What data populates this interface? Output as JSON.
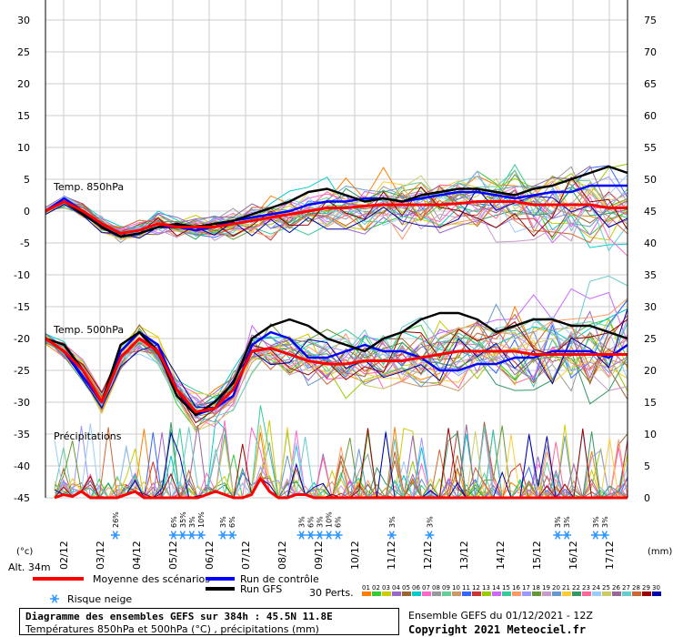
{
  "chart_data": {
    "type": "line",
    "title": "Diagramme des ensembles GEFS sur 384h : 45.5N 11.8E",
    "subtitle": "Températures 850hPa et 500hPa (°C) , précipitations (mm)",
    "run_label": "Ensemble GEFS du 01/12/2021 - 12Z",
    "copyright": "Copyright 2021 Meteociel.fr",
    "altitude": "Alt. 34m",
    "left_unit": "(°c)",
    "right_unit": "(mm)",
    "left_ticks": [
      "30",
      "25",
      "20",
      "15",
      "10",
      "5",
      "0",
      "-5",
      "-10",
      "-15",
      "-20",
      "-25",
      "-30",
      "-35",
      "-40",
      "-45"
    ],
    "right_ticks": [
      "75",
      "70",
      "65",
      "60",
      "55",
      "50",
      "45",
      "40",
      "35",
      "30",
      "25",
      "20",
      "15",
      "10",
      "5",
      "0"
    ],
    "x_labels": [
      "02/12",
      "03/12",
      "04/12",
      "05/12",
      "06/12",
      "07/12",
      "08/12",
      "09/12",
      "10/12",
      "11/12",
      "12/12",
      "13/12",
      "14/12",
      "15/12",
      "16/12",
      "17/12"
    ],
    "section_labels": {
      "t850": "Temp. 850hPa",
      "t500": "Temp. 500hPa",
      "precip": "Précipitations"
    },
    "legend": {
      "mean": "Moyenne des scénarios",
      "control": "Run de contrôle",
      "gfs": "Run GFS",
      "snow": "Risque neige",
      "perts_label": "30 Perts."
    },
    "colors": {
      "mean": "#ff0000",
      "control": "#0000ff",
      "gfs": "#000000",
      "snow": "#3399ff"
    },
    "pert_numbers": [
      "01",
      "02",
      "03",
      "04",
      "05",
      "06",
      "07",
      "08",
      "09",
      "10",
      "11",
      "12",
      "13",
      "14",
      "15",
      "16",
      "17",
      "18",
      "19",
      "20",
      "21",
      "22",
      "23",
      "24",
      "25",
      "26",
      "27",
      "28",
      "29",
      "30"
    ],
    "pert_colors": [
      "#ff7f00",
      "#33cc33",
      "#cccc00",
      "#9966cc",
      "#996633",
      "#00cccc",
      "#ff66cc",
      "#999999",
      "#66cc99",
      "#cc9966",
      "#3366ff",
      "#cc3333",
      "#99cc00",
      "#cc66ff",
      "#33cc99",
      "#ff9966",
      "#9999ff",
      "#669933",
      "#cc99cc",
      "#6699cc",
      "#ffcc33",
      "#339966",
      "#ff6699",
      "#99ccff",
      "#cccc66",
      "#996699",
      "#66cccc",
      "#cc6633",
      "#990000",
      "#0000aa"
    ],
    "t850_mean": [
      0,
      1.5,
      0,
      -2,
      -3.5,
      -3,
      -2,
      -2.5,
      -2.5,
      -2.5,
      -2,
      -1.5,
      -1,
      -0.5,
      0,
      0.5,
      0.5,
      0.8,
      1,
      1,
      1,
      1,
      1.2,
      1.5,
      1.5,
      1.5,
      1,
      1,
      1,
      1,
      0.5,
      0.5
    ],
    "t850_control": [
      0,
      2,
      0,
      -2.5,
      -4,
      -3.5,
      -2.5,
      -2.5,
      -3,
      -2.5,
      -1.5,
      -1,
      -0.5,
      0,
      1,
      1.5,
      1.5,
      2,
      2,
      1.5,
      2,
      2.5,
      3,
      3,
      2.5,
      2,
      2.5,
      3,
      3,
      4,
      4,
      4
    ],
    "t850_gfs": [
      0,
      1.5,
      -0.5,
      -2.5,
      -4,
      -3.5,
      -2.5,
      -2,
      -2.5,
      -2,
      -1.5,
      -0.5,
      0.5,
      1.5,
      3,
      3.5,
      2.5,
      1.5,
      2,
      1.5,
      2.5,
      3,
      3.5,
      3.5,
      3,
      2.5,
      3.5,
      4,
      5,
      6,
      7,
      6
    ],
    "t500_mean": [
      -20,
      -22,
      -25,
      -30,
      -23,
      -20,
      -22,
      -28,
      -31.5,
      -31,
      -28,
      -22,
      -21.5,
      -22.5,
      -23.5,
      -24,
      -24,
      -23.5,
      -23.5,
      -23.5,
      -23,
      -22.5,
      -22,
      -22,
      -22,
      -22,
      -22.5,
      -22.5,
      -22.5,
      -22.5,
      -22.5,
      -22.5
    ],
    "t500_control": [
      -20,
      -22,
      -26,
      -30,
      -22,
      -19,
      -21,
      -28,
      -32,
      -31,
      -29,
      -21,
      -19,
      -20,
      -23,
      -23,
      -22,
      -21,
      -22,
      -22,
      -23,
      -25,
      -25,
      -24,
      -24,
      -23,
      -23,
      -22,
      -22,
      -22,
      -23,
      -21
    ],
    "t500_gfs": [
      -20,
      -21,
      -25,
      -30,
      -21,
      -19,
      -22,
      -29,
      -32,
      -30,
      -27,
      -20,
      -18,
      -17,
      -18,
      -20,
      -21,
      -22,
      -20,
      -19,
      -17,
      -16,
      -16,
      -17,
      -19,
      -18,
      -17,
      -17,
      -18,
      -18,
      -19,
      -20
    ],
    "precip_mean": [
      0,
      0.5,
      0.2,
      1,
      0,
      0,
      0,
      0,
      0.5,
      1,
      0,
      0,
      0,
      0,
      0,
      0,
      0,
      0.5,
      1,
      0.5,
      0,
      0,
      0.5,
      3,
      1,
      0,
      0,
      0.5,
      0.5,
      0,
      0,
      0,
      0,
      0,
      0,
      0,
      0,
      0,
      0,
      0,
      0,
      0,
      0,
      0,
      0,
      0,
      0,
      0,
      0,
      0,
      0,
      0,
      0,
      0,
      0,
      0,
      0,
      0,
      0,
      0,
      0,
      0,
      0,
      0,
      0
    ],
    "snow_markers": [
      {
        "x": 0.12,
        "pcts": [
          "26%"
        ]
      },
      {
        "x": 0.22,
        "pcts": [
          "6%",
          "35%",
          "3%",
          "10%"
        ]
      },
      {
        "x": 0.305,
        "pcts": [
          "3%",
          "6%"
        ]
      },
      {
        "x": 0.44,
        "pcts": [
          "3%",
          "6%",
          "3%",
          "10%",
          "6%"
        ]
      },
      {
        "x": 0.595,
        "pcts": [
          "3%"
        ]
      },
      {
        "x": 0.66,
        "pcts": [
          "3%"
        ]
      },
      {
        "x": 0.88,
        "pcts": [
          "3%",
          "3%"
        ]
      },
      {
        "x": 0.945,
        "pcts": [
          "3%",
          "3%"
        ]
      }
    ]
  }
}
